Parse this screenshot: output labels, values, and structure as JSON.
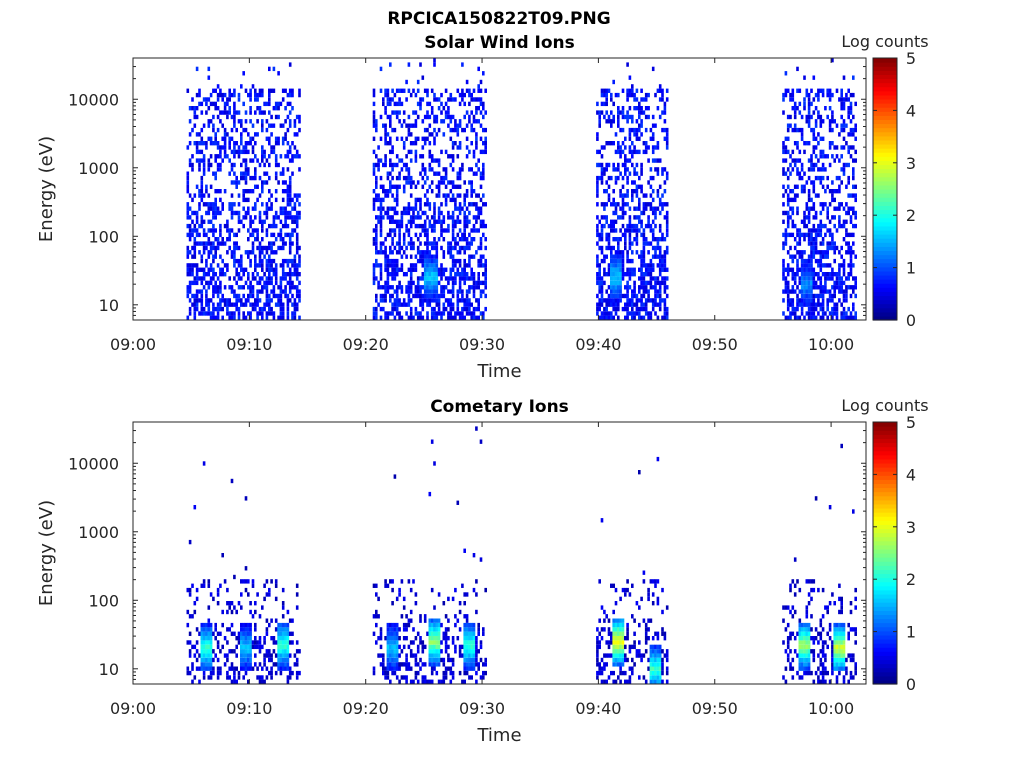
{
  "figure_title": "RPCICA150822T09.PNG",
  "colors": {
    "very_low": "#00008f",
    "low": "#0040ff",
    "mid": "#00ffff",
    "high": "#ffff00",
    "top": "#800000"
  },
  "chart_data": [
    {
      "type": "heatmap",
      "title": "Solar Wind Ions",
      "xlabel": "Time",
      "ylabel": "Energy (eV)",
      "xlim": [
        "09:00",
        "10:03"
      ],
      "ylim": [
        6,
        40000
      ],
      "yscale": "log",
      "x_ticks": [
        "09:00",
        "09:10",
        "09:20",
        "09:30",
        "09:40",
        "09:50",
        "10:00"
      ],
      "y_ticks": [
        "10",
        "100",
        "1000",
        "10000"
      ],
      "colorbar": {
        "label": "Log counts",
        "range": [
          0,
          5
        ],
        "ticks": [
          "0",
          "1",
          "2",
          "3",
          "4",
          "5"
        ]
      },
      "measurement_windows": [
        {
          "start": "09:04.6",
          "end": "09:14.2"
        },
        {
          "start": "09:20.6",
          "end": "09:30.2"
        },
        {
          "start": "09:39.8",
          "end": "09:46.0"
        },
        {
          "start": "09:55.8",
          "end": "10:02.2"
        }
      ],
      "hot_spots": [
        {
          "time": "09:25.5",
          "energy": 25,
          "log_counts": 1.5
        },
        {
          "time": "09:41.4",
          "energy": 25,
          "log_counts": 1.5
        },
        {
          "time": "09:57.8",
          "energy": 20,
          "log_counts": 1.2
        }
      ],
      "background_level": 0.4
    },
    {
      "type": "heatmap",
      "title": "Cometary Ions",
      "xlabel": "Time",
      "ylabel": "Energy (eV)",
      "xlim": [
        "09:00",
        "10:03"
      ],
      "ylim": [
        6,
        40000
      ],
      "yscale": "log",
      "x_ticks": [
        "09:00",
        "09:10",
        "09:20",
        "09:30",
        "09:40",
        "09:50",
        "10:00"
      ],
      "y_ticks": [
        "10",
        "100",
        "1000",
        "10000"
      ],
      "colorbar": {
        "label": "Log counts",
        "range": [
          0,
          5
        ],
        "ticks": [
          "0",
          "1",
          "2",
          "3",
          "4",
          "5"
        ]
      },
      "measurement_windows": [
        {
          "start": "09:04.6",
          "end": "09:14.2"
        },
        {
          "start": "09:20.6",
          "end": "09:30.2"
        },
        {
          "start": "09:39.8",
          "end": "09:46.0"
        },
        {
          "start": "09:55.8",
          "end": "10:02.2"
        }
      ],
      "hot_spots": [
        {
          "time": "09:06.2",
          "energy": 20,
          "log_counts": 2.0
        },
        {
          "time": "09:09.6",
          "energy": 20,
          "log_counts": 1.5
        },
        {
          "time": "09:12.8",
          "energy": 22,
          "log_counts": 2.0
        },
        {
          "time": "09:22.2",
          "energy": 20,
          "log_counts": 1.5
        },
        {
          "time": "09:25.8",
          "energy": 25,
          "log_counts": 2.5
        },
        {
          "time": "09:28.8",
          "energy": 22,
          "log_counts": 2.0
        },
        {
          "time": "09:41.6",
          "energy": 25,
          "log_counts": 3.0
        },
        {
          "time": "09:44.8",
          "energy": 10,
          "log_counts": 2.0
        },
        {
          "time": "09:57.6",
          "energy": 22,
          "log_counts": 2.5
        },
        {
          "time": "10:00.6",
          "energy": 20,
          "log_counts": 2.8
        }
      ],
      "background_level": 0.2
    }
  ]
}
